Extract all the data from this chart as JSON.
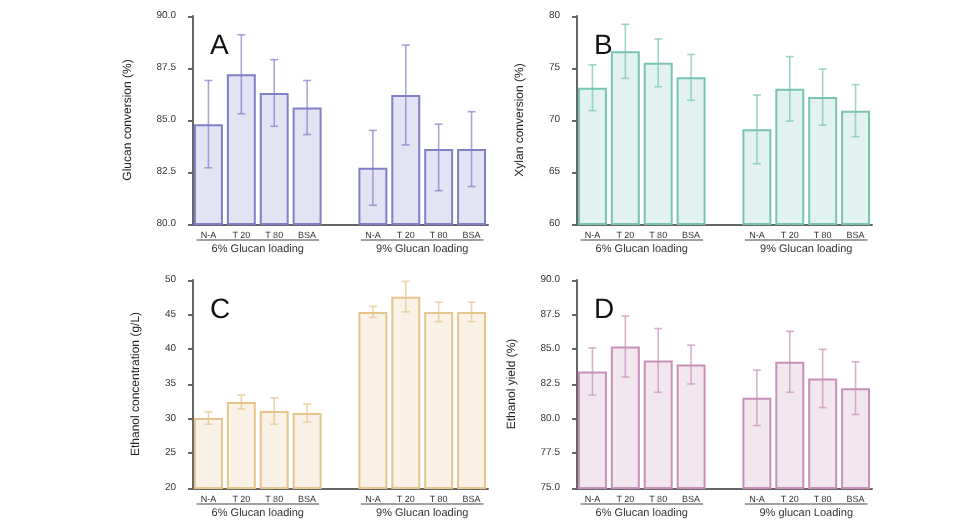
{
  "chart_data": [
    {
      "type": "bar",
      "title": "A",
      "ylabel": "Glucan conversion (%)",
      "categories": [
        "N-A",
        "T 20",
        "T 80",
        "BSA",
        null,
        "N-A",
        "T 20",
        "T 80",
        "BSA"
      ],
      "values": [
        84.8,
        87.2,
        86.3,
        85.6,
        null,
        82.7,
        86.2,
        83.6,
        83.6
      ],
      "errors": [
        2.1,
        1.9,
        1.6,
        1.3,
        null,
        1.8,
        2.4,
        [
          81.6,
          84.8
        ],
        1.8
      ],
      "color": "#8080c8",
      "ylim": [
        80,
        90
      ],
      "yticks": [
        {
          "value": 80,
          "label": "80.0"
        },
        82.5,
        {
          "value": 85,
          "label": "85.0"
        },
        87.5,
        {
          "value": 90,
          "label": "90.0"
        }
      ],
      "annotations": [
        "6% Glucan loading",
        "9% Glucan loading"
      ]
    },
    {
      "type": "bar",
      "title": "B",
      "ylabel": "Xylan conversion (%)",
      "categories": [
        "N-A",
        "T 20",
        "T 80",
        "BSA",
        null,
        "N-A",
        "T 20",
        "T 80",
        "BSA"
      ],
      "values": [
        73.1,
        76.6,
        75.5,
        74.1,
        null,
        69.1,
        73.0,
        72.2,
        70.9
      ],
      "errors": [
        2.2,
        2.6,
        2.3,
        2.2,
        null,
        3.3,
        3.1,
        2.7,
        2.5
      ],
      "color": "#78c4b4",
      "ylim": [
        60,
        80
      ],
      "yticks": [
        60,
        65,
        70,
        75,
        80
      ],
      "annotations": [
        "6% Glucan loading",
        "9% Glucan loading"
      ]
    },
    {
      "type": "bar",
      "title": "C",
      "ylabel": "Ethanol concentration (g/L)",
      "categories": [
        "N-A",
        "T 20",
        "T 80",
        "BSA",
        null,
        "N-A",
        "T 20",
        "T 80",
        "BSA"
      ],
      "values": [
        30.1,
        32.4,
        31.1,
        30.8,
        null,
        45.4,
        47.6,
        45.4,
        45.4
      ],
      "errors": [
        0.9,
        1.0,
        1.9,
        1.3,
        null,
        0.8,
        2.2,
        1.4,
        1.4
      ],
      "color": "#e6c48c",
      "ylim": [
        20,
        50
      ],
      "yticks": [
        20,
        25,
        30,
        35,
        40,
        45,
        50
      ],
      "annotations": [
        "6% Glucan loading",
        "9% Glucan loading"
      ]
    },
    {
      "type": "bar",
      "title": "D",
      "ylabel": "Ethanol yield (%)",
      "categories": [
        "N-A",
        "T 20",
        "T 80",
        "BSA",
        null,
        "N-A",
        "T 20",
        "T 80",
        "BSA"
      ],
      "values": [
        83.4,
        85.2,
        84.2,
        83.9,
        null,
        81.5,
        84.1,
        82.9,
        82.2
      ],
      "errors": [
        1.7,
        2.2,
        2.3,
        1.4,
        null,
        2.0,
        2.2,
        2.1,
        1.9
      ],
      "color": "#c890b8",
      "ylim": [
        75,
        90
      ],
      "yticks": [
        {
          "value": 75,
          "label": "75.0"
        },
        77.5,
        {
          "value": 80,
          "label": "80.0"
        },
        82.5,
        {
          "value": 85,
          "label": "85.0"
        },
        87.5,
        {
          "value": 90,
          "label": "90.0"
        }
      ],
      "annotations": [
        "6% Glucan loading",
        "9% glucan Loading"
      ]
    }
  ]
}
